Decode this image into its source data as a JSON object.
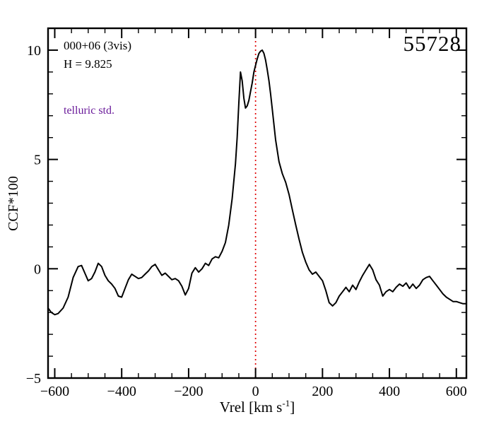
{
  "page": {
    "background": "#ffffff"
  },
  "annotations": {
    "field_label": "000+06 (3vis)",
    "h_mag": "H = 9.825",
    "telluric": "telluric std.",
    "telluric_color": "#6a1b9a",
    "mjd": "55728"
  },
  "chart_data": {
    "type": "line",
    "title": "",
    "xlabel_main": "Vrel [km s",
    "xlabel_sup": "-1",
    "xlabel_close": "]",
    "ylabel": "CCF*100",
    "xlim": [
      -620,
      630
    ],
    "ylim": [
      -5,
      11
    ],
    "grid": false,
    "legend": "none",
    "xtick_values": [
      -600,
      -400,
      -200,
      0,
      200,
      400,
      600
    ],
    "xtick_labels": [
      "−600",
      "−400",
      "−200",
      "0",
      "200",
      "400",
      "600"
    ],
    "ytick_values": [
      -5,
      0,
      5,
      10
    ],
    "ytick_labels": [
      "−5",
      "0",
      "5",
      "10"
    ],
    "x_minor_step": 50,
    "y_minor_step": 1,
    "vline": {
      "x": 0,
      "color": "#e00000",
      "style": "dotted"
    },
    "series": [
      {
        "name": "ccf",
        "color": "#000000",
        "x": [
          -620,
          -610,
          -600,
          -590,
          -575,
          -560,
          -545,
          -530,
          -520,
          -510,
          -500,
          -490,
          -480,
          -470,
          -460,
          -450,
          -440,
          -430,
          -420,
          -410,
          -400,
          -390,
          -380,
          -370,
          -360,
          -350,
          -340,
          -330,
          -320,
          -310,
          -300,
          -290,
          -280,
          -270,
          -260,
          -250,
          -240,
          -230,
          -220,
          -210,
          -200,
          -190,
          -180,
          -170,
          -160,
          -150,
          -140,
          -130,
          -120,
          -110,
          -100,
          -90,
          -80,
          -70,
          -60,
          -55,
          -50,
          -45,
          -40,
          -35,
          -30,
          -25,
          -20,
          -15,
          -10,
          -5,
          0,
          5,
          10,
          15,
          20,
          25,
          30,
          35,
          40,
          45,
          50,
          60,
          70,
          80,
          90,
          100,
          110,
          120,
          130,
          140,
          150,
          160,
          170,
          180,
          190,
          200,
          210,
          220,
          230,
          240,
          250,
          260,
          270,
          280,
          290,
          300,
          310,
          320,
          330,
          340,
          350,
          360,
          370,
          380,
          390,
          400,
          410,
          420,
          430,
          440,
          450,
          460,
          470,
          480,
          490,
          500,
          510,
          520,
          530,
          540,
          550,
          560,
          570,
          580,
          590,
          600,
          610,
          620,
          630
        ],
        "y": [
          -1.8,
          -2.0,
          -2.1,
          -2.05,
          -1.8,
          -1.3,
          -0.4,
          0.1,
          0.15,
          -0.2,
          -0.55,
          -0.45,
          -0.15,
          0.25,
          0.1,
          -0.3,
          -0.55,
          -0.7,
          -0.9,
          -1.25,
          -1.3,
          -0.9,
          -0.5,
          -0.25,
          -0.35,
          -0.45,
          -0.4,
          -0.25,
          -0.1,
          0.1,
          0.2,
          -0.05,
          -0.3,
          -0.2,
          -0.35,
          -0.5,
          -0.45,
          -0.55,
          -0.8,
          -1.2,
          -0.9,
          -0.2,
          0.05,
          -0.15,
          0.0,
          0.25,
          0.15,
          0.45,
          0.55,
          0.5,
          0.8,
          1.2,
          2.0,
          3.2,
          4.8,
          6.0,
          7.6,
          9.0,
          8.6,
          7.8,
          7.35,
          7.45,
          7.7,
          8.1,
          8.5,
          9.0,
          9.3,
          9.6,
          9.85,
          9.95,
          10.0,
          9.85,
          9.55,
          9.1,
          8.6,
          8.0,
          7.3,
          5.9,
          4.9,
          4.35,
          3.95,
          3.4,
          2.7,
          2.0,
          1.35,
          0.75,
          0.3,
          -0.05,
          -0.25,
          -0.15,
          -0.35,
          -0.55,
          -1.0,
          -1.55,
          -1.7,
          -1.55,
          -1.25,
          -1.05,
          -0.85,
          -1.05,
          -0.75,
          -0.95,
          -0.6,
          -0.3,
          -0.05,
          0.2,
          -0.05,
          -0.5,
          -0.75,
          -1.25,
          -1.05,
          -0.95,
          -1.05,
          -0.85,
          -0.7,
          -0.8,
          -0.65,
          -0.9,
          -0.7,
          -0.9,
          -0.75,
          -0.5,
          -0.4,
          -0.35,
          -0.55,
          -0.75,
          -0.95,
          -1.15,
          -1.3,
          -1.4,
          -1.5,
          -1.5,
          -1.55,
          -1.6,
          -1.6
        ]
      }
    ]
  }
}
